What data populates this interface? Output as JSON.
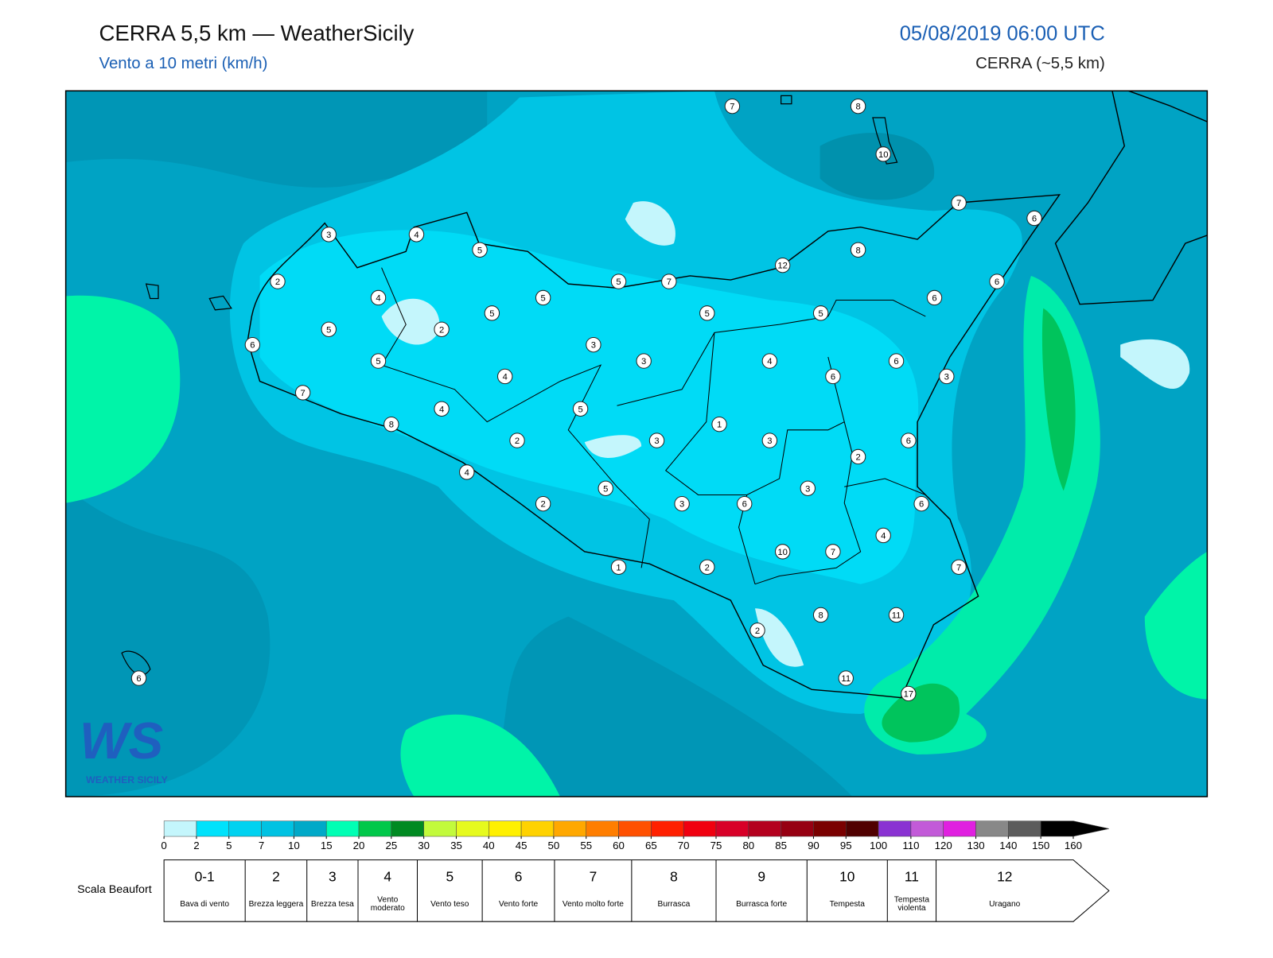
{
  "header": {
    "title": "CERRA 5,5 km — WeatherSicily",
    "subtitle": "Vento a 10 metri (km/h)",
    "date": "05/08/2019 06:00 UTC",
    "model": "CERRA (~5,5 km)"
  },
  "stations": [
    "7",
    "8",
    "10",
    "7",
    "6",
    "3",
    "4",
    "5",
    "8",
    "12",
    "2",
    "5",
    "7",
    "6",
    "4",
    "5",
    "6",
    "5",
    "5",
    "5",
    "5",
    "2",
    "6",
    "3",
    "3",
    "4",
    "6",
    "5",
    "4",
    "6",
    "3",
    "7",
    "4",
    "5",
    "8",
    "1",
    "2",
    "3",
    "3",
    "6",
    "2",
    "4",
    "5",
    "3",
    "2",
    "3",
    "6",
    "6",
    "4",
    "10",
    "7",
    "1",
    "2",
    "7",
    "2",
    "8",
    "11",
    "11",
    "17",
    "6"
  ],
  "logo": {
    "text": "WS",
    "caption": "WEATHER SICILY"
  },
  "colorbar": {
    "ticks": [
      0,
      2,
      5,
      7,
      10,
      15,
      20,
      25,
      30,
      35,
      40,
      45,
      50,
      55,
      60,
      65,
      70,
      75,
      80,
      85,
      90,
      95,
      100,
      110,
      120,
      130,
      140,
      150,
      160
    ],
    "colors": [
      "#c4f6fc",
      "#00e2fb",
      "#00d2f0",
      "#00c2e2",
      "#00a9c8",
      "#00ffb4",
      "#00c84a",
      "#008a22",
      "#c2fa3c",
      "#e6fa1e",
      "#fff000",
      "#ffd200",
      "#ffa800",
      "#ff7e00",
      "#ff5000",
      "#ff2000",
      "#f00010",
      "#d80028",
      "#b4001e",
      "#960012",
      "#7a0000",
      "#500000",
      "#8a32d2",
      "#c25ad8",
      "#e020e0",
      "#888888",
      "#5c5c5c",
      "#000000",
      "#8a4a28",
      "#d08848"
    ]
  },
  "beaufort": {
    "label": "Scala Beaufort",
    "levels": [
      {
        "force": "0-1",
        "desc": "Bava di vento"
      },
      {
        "force": "2",
        "desc": "Brezza leggera"
      },
      {
        "force": "3",
        "desc": "Brezza tesa"
      },
      {
        "force": "4",
        "desc": "Vento moderato"
      },
      {
        "force": "5",
        "desc": "Vento teso"
      },
      {
        "force": "6",
        "desc": "Vento forte"
      },
      {
        "force": "7",
        "desc": "Vento molto forte"
      },
      {
        "force": "8",
        "desc": "Burrasca"
      },
      {
        "force": "9",
        "desc": "Burrasca forte"
      },
      {
        "force": "10",
        "desc": "Tempesta"
      },
      {
        "force": "11",
        "desc": "Tempesta violenta"
      },
      {
        "force": "12",
        "desc": "Uragano"
      }
    ]
  }
}
